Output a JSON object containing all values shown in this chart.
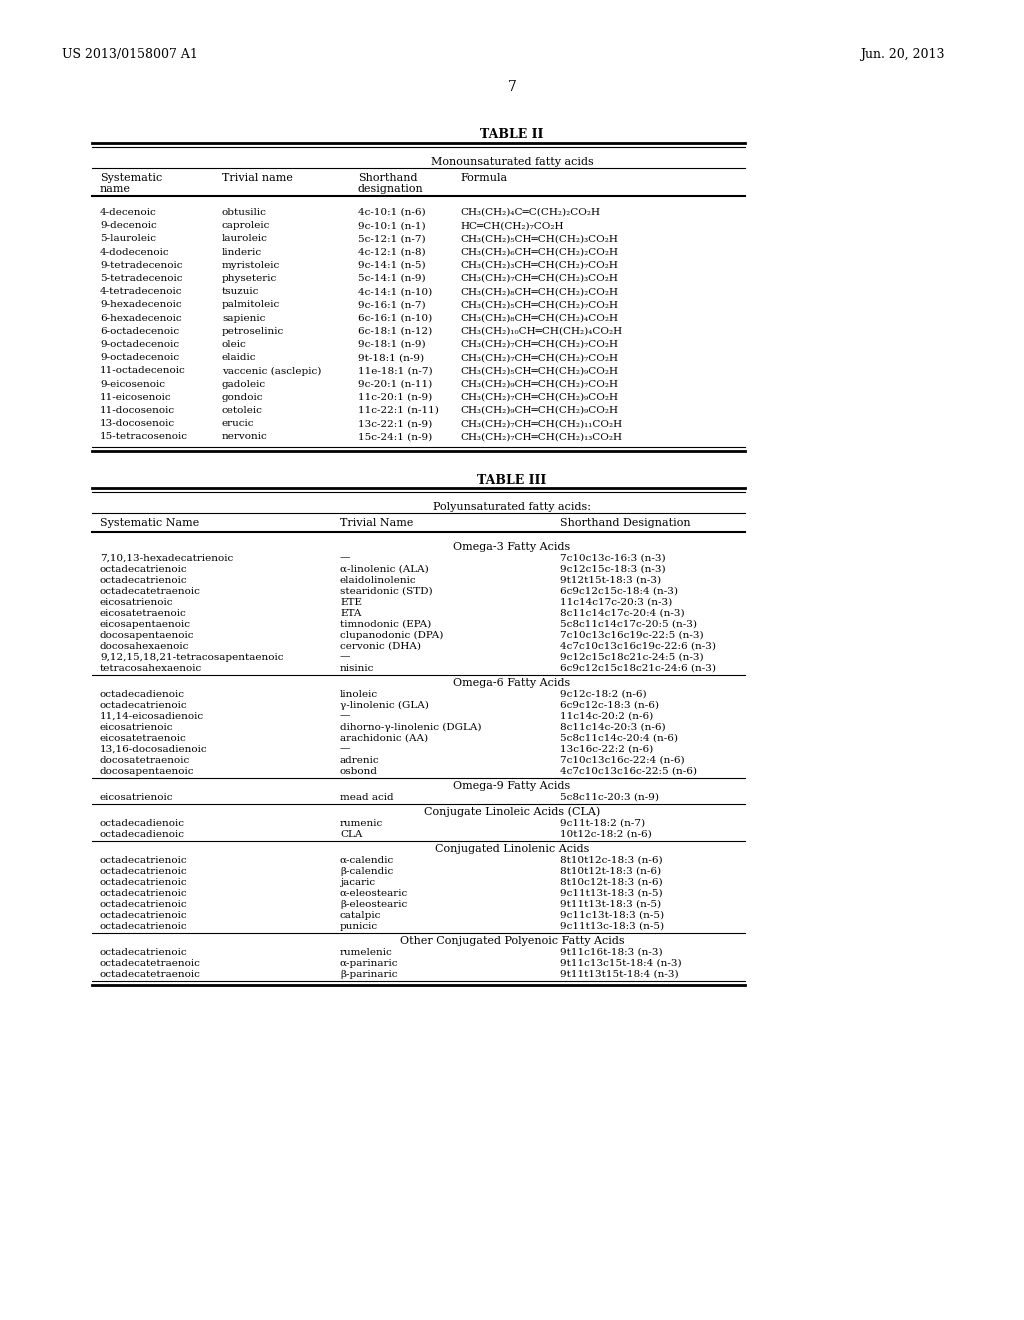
{
  "header_left": "US 2013/0158007 A1",
  "header_right": "Jun. 20, 2013",
  "page_number": "7",
  "table2_title": "TABLE II",
  "table2_subtitle": "Monounsaturated fatty acids",
  "table2_rows": [
    [
      "4-decenoic",
      "obtusilic",
      "4c-10:1 (n-6)",
      "CH₃(CH₂)₄C═C(CH₂)₂CO₂H"
    ],
    [
      "9-decenoic",
      "caproleic",
      "9c-10:1 (n-1)",
      "HC═CH(CH₂)₇CO₂H"
    ],
    [
      "5-lauroleic",
      "lauroleic",
      "5c-12:1 (n-7)",
      "CH₃(CH₂)₅CH═CH(CH₂)₃CO₂H"
    ],
    [
      "4-dodecenoic",
      "linderic",
      "4c-12:1 (n-8)",
      "CH₃(CH₂)₆CH═CH(CH₂)₂CO₂H"
    ],
    [
      "9-tetradecenoic",
      "myristoleic",
      "9c-14:1 (n-5)",
      "CH₃(CH₂)₃CH═CH(CH₂)₇CO₂H"
    ],
    [
      "5-tetradecenoic",
      "physeteric",
      "5c-14:1 (n-9)",
      "CH₃(CH₂)₇CH═CH(CH₂)₃CO₂H"
    ],
    [
      "4-tetradecenoic",
      "tsuzuic",
      "4c-14:1 (n-10)",
      "CH₃(CH₂)₈CH═CH(CH₂)₂CO₂H"
    ],
    [
      "9-hexadecenoic",
      "palmitoleic",
      "9c-16:1 (n-7)",
      "CH₃(CH₂)₅CH═CH(CH₂)₇CO₂H"
    ],
    [
      "6-hexadecenoic",
      "sapienic",
      "6c-16:1 (n-10)",
      "CH₃(CH₂)₈CH═CH(CH₂)₄CO₂H"
    ],
    [
      "6-octadecenoic",
      "petroselinic",
      "6c-18:1 (n-12)",
      "CH₃(CH₂)₁₀CH═CH(CH₂)₄CO₂H"
    ],
    [
      "9-octadecenoic",
      "oleic",
      "9c-18:1 (n-9)",
      "CH₃(CH₂)₇CH═CH(CH₂)₇CO₂H"
    ],
    [
      "9-octadecenoic",
      "elaidic",
      "9t-18:1 (n-9)",
      "CH₃(CH₂)₇CH═CH(CH₂)₇CO₂H"
    ],
    [
      "11-octadecenoic",
      "vaccenic (asclepic)",
      "11e-18:1 (n-7)",
      "CH₃(CH₂)₅CH═CH(CH₂)₉CO₂H"
    ],
    [
      "9-eicosenoic",
      "gadoleic",
      "9c-20:1 (n-11)",
      "CH₃(CH₂)₉CH═CH(CH₂)₇CO₂H"
    ],
    [
      "11-eicosenoic",
      "gondoic",
      "11c-20:1 (n-9)",
      "CH₃(CH₂)₇CH═CH(CH₂)₉CO₂H"
    ],
    [
      "11-docosenoic",
      "cetoleic",
      "11c-22:1 (n-11)",
      "CH₃(CH₂)₉CH═CH(CH₂)₉CO₂H"
    ],
    [
      "13-docosenoic",
      "erucic",
      "13c-22:1 (n-9)",
      "CH₃(CH₂)₇CH═CH(CH₂)₁₁CO₂H"
    ],
    [
      "15-tetracosenoic",
      "nervonic",
      "15c-24:1 (n-9)",
      "CH₃(CH₂)₇CH═CH(CH₂)₁₃CO₂H"
    ]
  ],
  "table3_title": "TABLE III",
  "table3_subtitle": "Polyunsaturated fatty acids:",
  "table3_sections": [
    {
      "section_header": "Omega-3 Fatty Acids",
      "rows": [
        [
          "7,10,13-hexadecatrienoic",
          "—",
          "7c10c13c-16:3 (n-3)"
        ],
        [
          "octadecatrienoic",
          "α-linolenic (ALA)",
          "9c12c15c-18:3 (n-3)"
        ],
        [
          "octadecatrienoic",
          "elaidolinolenic",
          "9t12t15t-18:3 (n-3)"
        ],
        [
          "octadecatetraenoic",
          "stearidonic (STD)",
          "6c9c12c15c-18:4 (n-3)"
        ],
        [
          "eicosatrienoic",
          "ETE",
          "11c14c17c-20:3 (n-3)"
        ],
        [
          "eicosatetraenoic",
          "ETA",
          "8c11c14c17c-20:4 (n-3)"
        ],
        [
          "eicosapentaenoic",
          "timnodonic (EPA)",
          "5c8c11c14c17c-20:5 (n-3)"
        ],
        [
          "docosapentaenoic",
          "clupanodonic (DPA)",
          "7c10c13c16c19c-22:5 (n-3)"
        ],
        [
          "docosahexaenoic",
          "cervonic (DHA)",
          "4c7c10c13c16c19c-22:6 (n-3)"
        ],
        [
          "9,12,15,18,21-tetracosapentaenoic",
          "—",
          "9c12c15c18c21c-24:5 (n-3)"
        ],
        [
          "tetracosahexaenoic",
          "nisinic",
          "6c9c12c15c18c21c-24:6 (n-3)"
        ]
      ]
    },
    {
      "section_header": "Omega-6 Fatty Acids",
      "rows": [
        [
          "octadecadienoic",
          "linoleic",
          "9c12c-18:2 (n-6)"
        ],
        [
          "octadecatrienoic",
          "γ-linolenic (GLA)",
          "6c9c12c-18:3 (n-6)"
        ],
        [
          "11,14-eicosadienoic",
          "—",
          "11c14c-20:2 (n-6)"
        ],
        [
          "eicosatrienoic",
          "dihorno-γ-linolenic (DGLA)",
          "8c11c14c-20:3 (n-6)"
        ],
        [
          "eicosatetraenoic",
          "arachidonic (AA)",
          "5c8c11c14c-20:4 (n-6)"
        ],
        [
          "13,16-docosadienoic",
          "—",
          "13c16c-22:2 (n-6)"
        ],
        [
          "docosatetraenoic",
          "adrenic",
          "7c10c13c16c-22:4 (n-6)"
        ],
        [
          "docosapentaenoic",
          "osbond",
          "4c7c10c13c16c-22:5 (n-6)"
        ]
      ]
    },
    {
      "section_header": "Omega-9 Fatty Acids",
      "rows": [
        [
          "eicosatrienoic",
          "mead acid",
          "5c8c11c-20:3 (n-9)"
        ]
      ]
    },
    {
      "section_header": "Conjugate Linoleic Acids (CLA)",
      "rows": [
        [
          "octadecadienoic",
          "rumenic",
          "9c11t-18:2 (n-7)"
        ],
        [
          "octadecadienoic",
          "CLA",
          "10t12c-18:2 (n-6)"
        ]
      ]
    },
    {
      "section_header": "Conjugated Linolenic Acids",
      "rows": [
        [
          "octadecatrienoic",
          "α-calendic",
          "8t10t12c-18:3 (n-6)"
        ],
        [
          "octadecatrienoic",
          "β-calendic",
          "8t10t12t-18:3 (n-6)"
        ],
        [
          "octadecatrienoic",
          "jacaric",
          "8t10c12t-18:3 (n-6)"
        ],
        [
          "octadecatrienoic",
          "α-eleostearic",
          "9c11t13t-18:3 (n-5)"
        ],
        [
          "octadecatrienoic",
          "β-eleostearic",
          "9t11t13t-18:3 (n-5)"
        ],
        [
          "octadecatrienoic",
          "catalpic",
          "9c11c13t-18:3 (n-5)"
        ],
        [
          "octadecatrienoic",
          "punicic",
          "9c11t13c-18:3 (n-5)"
        ]
      ]
    },
    {
      "section_header": "Other Conjugated Polyenoic Fatty Acids",
      "rows": [
        [
          "octadecatrienoic",
          "rumelenic",
          "9t11c16t-18:3 (n-3)"
        ],
        [
          "octadecatetraenoic",
          "α-parinaric",
          "9t11c13c15t-18:4 (n-3)"
        ],
        [
          "octadecatetraenoic",
          "β-parinaric",
          "9t11t13t15t-18:4 (n-3)"
        ]
      ]
    }
  ]
}
